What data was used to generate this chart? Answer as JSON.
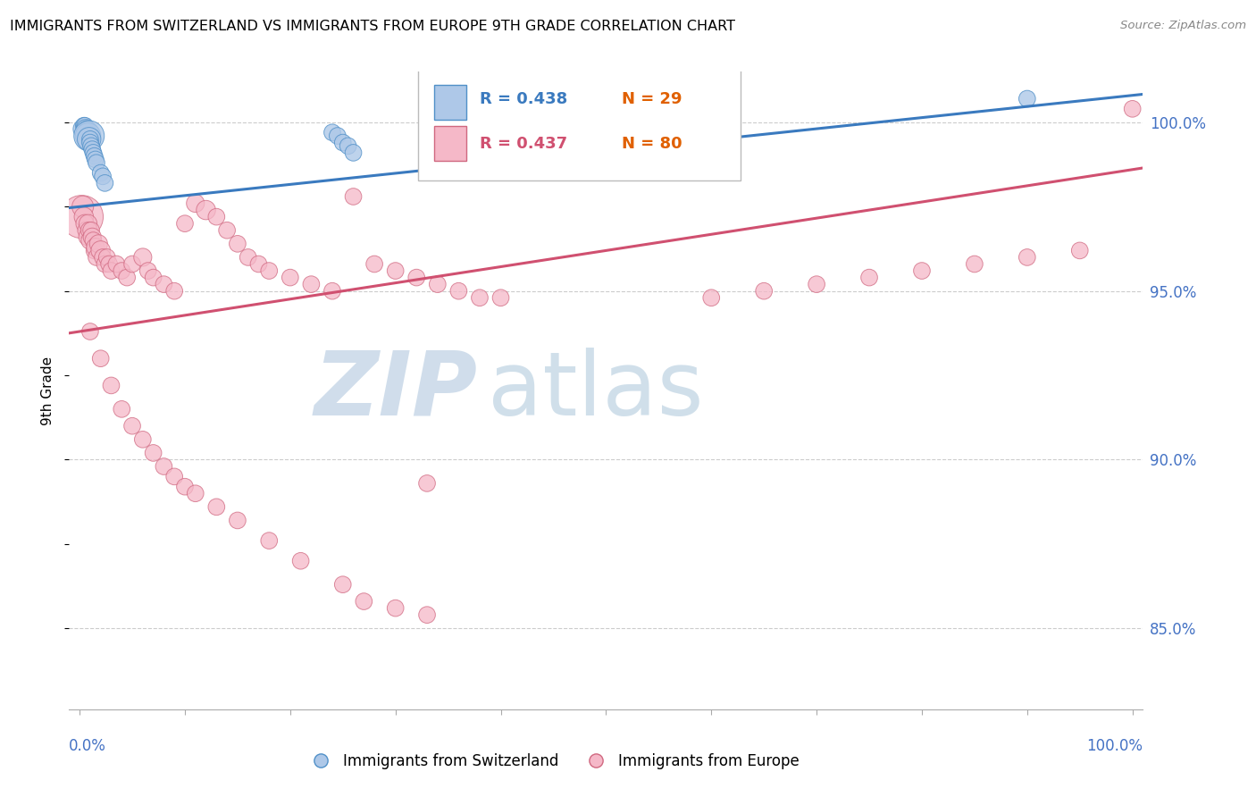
{
  "title": "IMMIGRANTS FROM SWITZERLAND VS IMMIGRANTS FROM EUROPE 9TH GRADE CORRELATION CHART",
  "source": "Source: ZipAtlas.com",
  "ylabel": "9th Grade",
  "y_tick_values": [
    0.85,
    0.9,
    0.95,
    1.0
  ],
  "xlim": [
    -0.01,
    1.01
  ],
  "ylim": [
    0.826,
    1.015
  ],
  "blue_label": "Immigrants from Switzerland",
  "pink_label": "Immigrants from Europe",
  "blue_fill": "#aec8e8",
  "pink_fill": "#f5b8c8",
  "blue_edge": "#5090c8",
  "pink_edge": "#d06880",
  "blue_line_color": "#3a7abf",
  "pink_line_color": "#d05070",
  "legend_blue_R": "R = 0.438",
  "legend_blue_N": "N = 29",
  "legend_pink_R": "R = 0.437",
  "legend_pink_N": "N = 80",
  "grid_color": "#cccccc",
  "spine_color": "#aaaaaa",
  "tick_label_color": "#4472c4",
  "blue_x": [
    0.003,
    0.004,
    0.005,
    0.006,
    0.006,
    0.007,
    0.007,
    0.007,
    0.008,
    0.008,
    0.009,
    0.009,
    0.01,
    0.01,
    0.011,
    0.012,
    0.013,
    0.014,
    0.015,
    0.016,
    0.02,
    0.022,
    0.024,
    0.24,
    0.245,
    0.25,
    0.255,
    0.26,
    0.9
  ],
  "blue_y": [
    0.998,
    0.999,
    0.999,
    0.998,
    0.997,
    0.998,
    0.996,
    0.997,
    0.997,
    0.996,
    0.996,
    0.995,
    0.995,
    0.994,
    0.993,
    0.992,
    0.991,
    0.99,
    0.989,
    0.988,
    0.985,
    0.984,
    0.982,
    0.997,
    0.996,
    0.994,
    0.993,
    0.991,
    1.007
  ],
  "blue_size": [
    40,
    30,
    30,
    40,
    30,
    30,
    40,
    30,
    50,
    70,
    100,
    60,
    30,
    30,
    30,
    30,
    30,
    30,
    30,
    30,
    30,
    30,
    30,
    30,
    30,
    30,
    30,
    30,
    30
  ],
  "pink_x": [
    0.002,
    0.003,
    0.004,
    0.005,
    0.006,
    0.007,
    0.008,
    0.009,
    0.01,
    0.011,
    0.012,
    0.013,
    0.014,
    0.015,
    0.016,
    0.018,
    0.02,
    0.022,
    0.024,
    0.026,
    0.028,
    0.03,
    0.035,
    0.04,
    0.045,
    0.05,
    0.06,
    0.065,
    0.07,
    0.08,
    0.09,
    0.1,
    0.11,
    0.12,
    0.13,
    0.14,
    0.15,
    0.16,
    0.17,
    0.18,
    0.2,
    0.22,
    0.24,
    0.26,
    0.28,
    0.3,
    0.32,
    0.34,
    0.36,
    0.4,
    0.6,
    0.65,
    0.7,
    0.75,
    0.8,
    0.85,
    0.9,
    0.95,
    1.0,
    0.01,
    0.02,
    0.03,
    0.04,
    0.05,
    0.06,
    0.07,
    0.08,
    0.09,
    0.1,
    0.11,
    0.13,
    0.15,
    0.18,
    0.21,
    0.25,
    0.27,
    0.3,
    0.33,
    0.33,
    0.38
  ],
  "pink_y": [
    0.972,
    0.975,
    0.972,
    0.97,
    0.968,
    0.966,
    0.97,
    0.968,
    0.965,
    0.968,
    0.966,
    0.965,
    0.962,
    0.963,
    0.96,
    0.964,
    0.962,
    0.96,
    0.958,
    0.96,
    0.958,
    0.956,
    0.958,
    0.956,
    0.954,
    0.958,
    0.96,
    0.956,
    0.954,
    0.952,
    0.95,
    0.97,
    0.976,
    0.974,
    0.972,
    0.968,
    0.964,
    0.96,
    0.958,
    0.956,
    0.954,
    0.952,
    0.95,
    0.978,
    0.958,
    0.956,
    0.954,
    0.952,
    0.95,
    0.948,
    0.948,
    0.95,
    0.952,
    0.954,
    0.956,
    0.958,
    0.96,
    0.962,
    1.004,
    0.938,
    0.93,
    0.922,
    0.915,
    0.91,
    0.906,
    0.902,
    0.898,
    0.895,
    0.892,
    0.89,
    0.886,
    0.882,
    0.876,
    0.87,
    0.863,
    0.858,
    0.856,
    0.854,
    0.893,
    0.948
  ],
  "pink_size": [
    200,
    50,
    40,
    35,
    30,
    30,
    35,
    30,
    35,
    30,
    35,
    30,
    30,
    35,
    30,
    35,
    40,
    30,
    30,
    30,
    30,
    30,
    30,
    30,
    30,
    30,
    35,
    30,
    30,
    30,
    30,
    30,
    35,
    40,
    30,
    30,
    30,
    30,
    30,
    30,
    30,
    30,
    30,
    30,
    30,
    30,
    30,
    30,
    30,
    30,
    30,
    30,
    30,
    30,
    30,
    30,
    30,
    30,
    30,
    30,
    30,
    30,
    30,
    30,
    30,
    30,
    30,
    30,
    30,
    30,
    30,
    30,
    30,
    30,
    30,
    30,
    30,
    30,
    30,
    30
  ]
}
